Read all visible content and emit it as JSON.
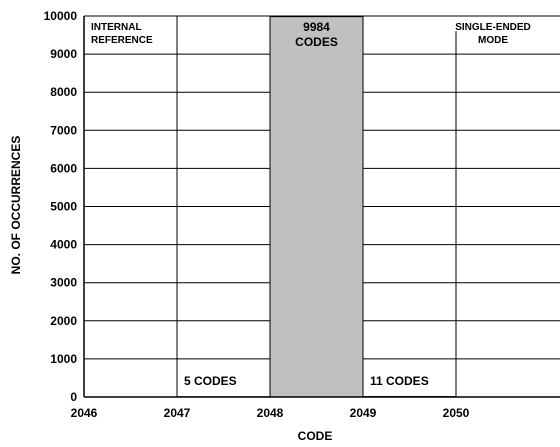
{
  "chart_data": {
    "type": "bar",
    "xlabel": "CODE",
    "ylabel": "NO. OF OCCURRENCES",
    "xlim": [
      2046,
      2051
    ],
    "ylim": [
      0,
      10000
    ],
    "x_ticks": [
      {
        "value": 2046,
        "label": "2046"
      },
      {
        "value": 2047,
        "label": "2047"
      },
      {
        "value": 2048,
        "label": "2048"
      },
      {
        "value": 2049,
        "label": "2049"
      },
      {
        "value": 2050,
        "label": "2050"
      }
    ],
    "y_ticks": [
      {
        "value": 0,
        "label": "0"
      },
      {
        "value": 1000,
        "label": "1000"
      },
      {
        "value": 2000,
        "label": "2000"
      },
      {
        "value": 3000,
        "label": "3000"
      },
      {
        "value": 4000,
        "label": "4000"
      },
      {
        "value": 5000,
        "label": "5000"
      },
      {
        "value": 6000,
        "label": "6000"
      },
      {
        "value": 7000,
        "label": "7000"
      },
      {
        "value": 8000,
        "label": "8000"
      },
      {
        "value": 9000,
        "label": "9000"
      },
      {
        "value": 10000,
        "label": "10000"
      }
    ],
    "bars": [
      {
        "code": 2047,
        "value": 5,
        "label": "5 CODES"
      },
      {
        "code": 2048,
        "value": 9984,
        "label_lines": [
          "9984",
          "CODES"
        ]
      },
      {
        "code": 2049,
        "value": 11,
        "label": "11 CODES"
      }
    ],
    "annotations": {
      "left_lines": [
        "INTERNAL",
        "REFERENCE"
      ],
      "right_lines": [
        "SINGLE-ENDED",
        "MODE"
      ]
    },
    "grid": true,
    "bar_color": "#c0c0c0",
    "grid_color": "#000000"
  }
}
